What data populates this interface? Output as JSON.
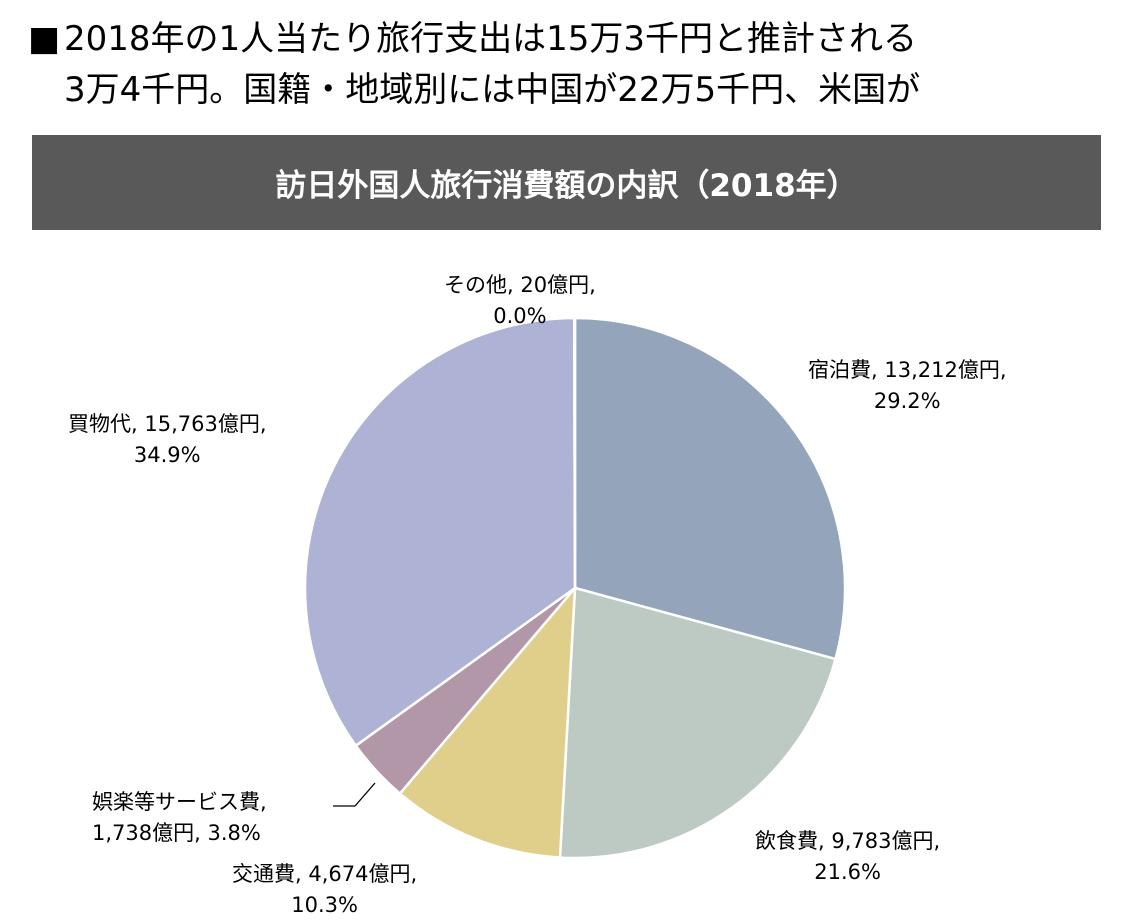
{
  "headline": {
    "bullet": "■",
    "line1": "2018年の1人当たり旅行支出は15万3千円と推計される",
    "line2": "3万4千円。国籍・地域別には中国が22万5千円、米国が"
  },
  "chart_data": {
    "type": "pie",
    "title": "訪日外国人旅行消費額の内訳（2018年）",
    "unit": "億円",
    "slices": [
      {
        "name": "宿泊費",
        "value": 13212,
        "value_label": "13,212億円",
        "percent": "29.2%",
        "color": "#94a5bb"
      },
      {
        "name": "飲食費",
        "value": 9783,
        "value_label": "9,783億円",
        "percent": "21.6%",
        "color": "#bccac3"
      },
      {
        "name": "交通費",
        "value": 4674,
        "value_label": "4,674億円",
        "percent": "10.3%",
        "color": "#e0cf8b"
      },
      {
        "name": "娯楽等サービス費",
        "value": 1738,
        "value_label": "1,738億円",
        "percent": "3.8%",
        "color": "#b197a8"
      },
      {
        "name": "買物代",
        "value": 15763,
        "value_label": "15,763億円",
        "percent": "34.9%",
        "color": "#aeb2d4"
      },
      {
        "name": "その他",
        "value": 20,
        "value_label": "20億円",
        "percent": "0.0%",
        "color": "#9aa3c8"
      }
    ]
  }
}
